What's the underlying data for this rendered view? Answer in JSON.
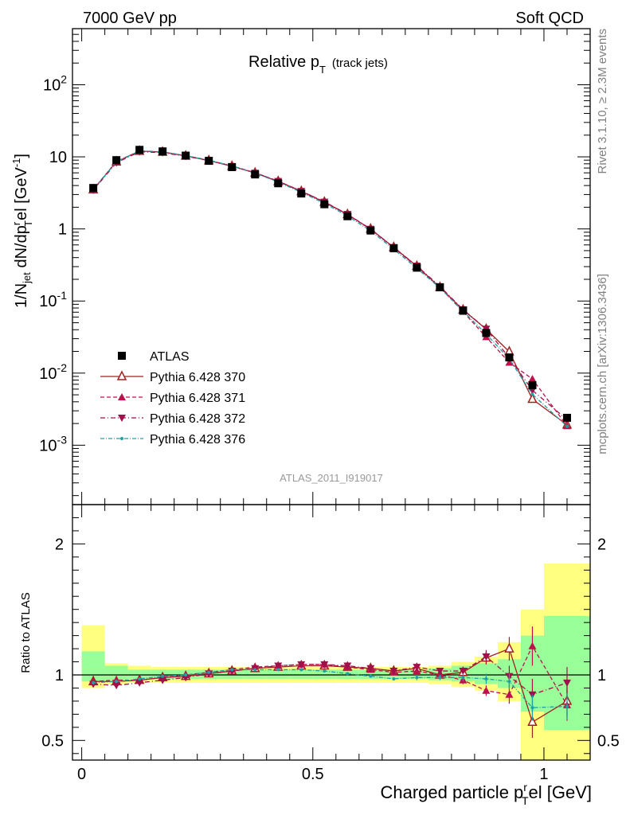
{
  "header": {
    "left": "7000 GeV pp",
    "right": "Soft QCD",
    "title_main": "Relative p",
    "title_sub": "T",
    "title_extra": "(track jets)",
    "analysis_id": "ATLAS_2011_I919017",
    "side_rivet": "Rivet 3.1.10, ≥ 2.3M events",
    "side_mcplots": "mcplots.cern.ch [arXiv:1306.3436]"
  },
  "axes": {
    "main_ylabel": "1/N_jet dN/dp_T^rel [GeV^-1]",
    "ratio_ylabel": "Ratio to ATLAS",
    "xlabel": "Charged particle p_T^rel [GeV]",
    "main_yticks": [
      "10^-3",
      "10^-2",
      "10^-1",
      "1",
      "10",
      "10^2"
    ],
    "ratio_yticks": [
      "0.5",
      "1",
      "2"
    ],
    "xticks": [
      "0",
      "0.5",
      "1"
    ]
  },
  "chart_data": {
    "type": "scatter",
    "x_scale": "linear",
    "y_scale": "log",
    "xlim": [
      -0.02,
      1.1
    ],
    "ylim": [
      0.00015,
      600
    ],
    "ratio_ylim": [
      0.35,
      2.3
    ],
    "x": [
      0.025,
      0.075,
      0.125,
      0.175,
      0.225,
      0.275,
      0.325,
      0.375,
      0.425,
      0.475,
      0.525,
      0.575,
      0.625,
      0.675,
      0.725,
      0.775,
      0.825,
      0.875,
      0.925,
      0.975,
      1.05
    ],
    "x_edges": [
      0.0,
      0.05,
      0.1,
      0.15,
      0.2,
      0.25,
      0.3,
      0.35,
      0.4,
      0.45,
      0.5,
      0.55,
      0.6,
      0.65,
      0.7,
      0.75,
      0.8,
      0.85,
      0.9,
      0.95,
      1.0,
      1.1
    ],
    "data": {
      "name": "ATLAS",
      "values": [
        3.7,
        9.0,
        12.5,
        11.9,
        10.4,
        8.8,
        7.2,
        5.7,
        4.3,
        3.1,
        2.2,
        1.5,
        0.95,
        0.54,
        0.29,
        0.155,
        0.074,
        0.036,
        0.0165,
        0.0068,
        0.0024
      ],
      "band_inner": [
        [
          0.95,
          1.18
        ],
        [
          0.96,
          1.07
        ],
        [
          0.97,
          1.04
        ],
        [
          0.97,
          1.04
        ],
        [
          0.97,
          1.04
        ],
        [
          0.97,
          1.04
        ],
        [
          0.97,
          1.04
        ],
        [
          0.97,
          1.04
        ],
        [
          0.97,
          1.04
        ],
        [
          0.97,
          1.04
        ],
        [
          0.97,
          1.04
        ],
        [
          0.97,
          1.04
        ],
        [
          0.97,
          1.04
        ],
        [
          0.97,
          1.04
        ],
        [
          0.97,
          1.04
        ],
        [
          0.96,
          1.05
        ],
        [
          0.95,
          1.07
        ],
        [
          0.93,
          1.09
        ],
        [
          0.9,
          1.12
        ],
        [
          0.72,
          1.3
        ],
        [
          0.58,
          1.45
        ]
      ],
      "band_outer": [
        [
          0.9,
          1.38
        ],
        [
          0.93,
          1.09
        ],
        [
          0.94,
          1.07
        ],
        [
          0.94,
          1.06
        ],
        [
          0.94,
          1.06
        ],
        [
          0.94,
          1.06
        ],
        [
          0.94,
          1.06
        ],
        [
          0.94,
          1.06
        ],
        [
          0.94,
          1.06
        ],
        [
          0.94,
          1.06
        ],
        [
          0.94,
          1.06
        ],
        [
          0.94,
          1.06
        ],
        [
          0.94,
          1.06
        ],
        [
          0.94,
          1.06
        ],
        [
          0.94,
          1.06
        ],
        [
          0.93,
          1.07
        ],
        [
          0.91,
          1.1
        ],
        [
          0.88,
          1.14
        ],
        [
          0.8,
          1.25
        ],
        [
          0.35,
          1.5
        ],
        [
          0.35,
          1.85
        ]
      ]
    },
    "series": [
      {
        "name": "Pythia 6.428 370",
        "color": "#a02020",
        "marker": "triangle-open",
        "dash": "",
        "ratio": [
          0.95,
          0.95,
          0.96,
          0.98,
          0.99,
          1.01,
          1.03,
          1.05,
          1.06,
          1.07,
          1.07,
          1.06,
          1.05,
          1.03,
          1.05,
          1.0,
          1.02,
          1.13,
          1.2,
          0.64,
          0.8
        ],
        "ratio_err": [
          0.01,
          0.01,
          0.01,
          0.01,
          0.01,
          0.01,
          0.01,
          0.01,
          0.01,
          0.01,
          0.01,
          0.01,
          0.01,
          0.01,
          0.02,
          0.02,
          0.03,
          0.05,
          0.09,
          0.12,
          0.12
        ]
      },
      {
        "name": "Pythia 6.428 371",
        "color": "#c0104c",
        "marker": "triangle-up",
        "dash": "5,3",
        "ratio": [
          0.95,
          0.96,
          0.96,
          0.98,
          1.0,
          1.02,
          1.04,
          1.06,
          1.07,
          1.08,
          1.08,
          1.06,
          1.04,
          1.02,
          1.03,
          1.0,
          0.96,
          0.88,
          0.85,
          1.22,
          0.77
        ],
        "ratio_err": [
          0.01,
          0.01,
          0.01,
          0.01,
          0.01,
          0.01,
          0.01,
          0.01,
          0.01,
          0.01,
          0.01,
          0.01,
          0.01,
          0.01,
          0.02,
          0.02,
          0.03,
          0.04,
          0.07,
          0.15,
          0.12
        ]
      },
      {
        "name": "Pythia 6.428 372",
        "color": "#a0104a",
        "marker": "triangle-down",
        "dash": "6,3,1,3",
        "ratio": [
          0.93,
          0.92,
          0.94,
          0.96,
          0.98,
          1.01,
          1.03,
          1.05,
          1.07,
          1.08,
          1.08,
          1.07,
          1.05,
          1.03,
          1.06,
          1.03,
          1.03,
          1.14,
          0.99,
          0.85,
          0.94
        ],
        "ratio_err": [
          0.01,
          0.01,
          0.01,
          0.01,
          0.01,
          0.01,
          0.01,
          0.01,
          0.01,
          0.01,
          0.01,
          0.01,
          0.01,
          0.01,
          0.02,
          0.02,
          0.03,
          0.05,
          0.08,
          0.12,
          0.12
        ]
      },
      {
        "name": "Pythia 6.428 376",
        "color": "#20a0a0",
        "marker": "dot",
        "dash": "5,2,1,2",
        "ratio": [
          0.94,
          0.95,
          0.97,
          0.99,
          1.0,
          1.02,
          1.04,
          1.04,
          1.04,
          1.04,
          1.03,
          1.01,
          0.99,
          0.97,
          0.98,
          0.98,
          0.98,
          0.97,
          0.95,
          0.75,
          0.76
        ],
        "ratio_err": [
          0.01,
          0.01,
          0.01,
          0.01,
          0.01,
          0.01,
          0.01,
          0.01,
          0.01,
          0.01,
          0.01,
          0.01,
          0.01,
          0.01,
          0.02,
          0.02,
          0.03,
          0.04,
          0.06,
          0.1,
          0.1
        ]
      }
    ],
    "legend_position": "lower-left",
    "band_colors": {
      "outer": "#ffff80",
      "inner": "#99ff99"
    }
  }
}
